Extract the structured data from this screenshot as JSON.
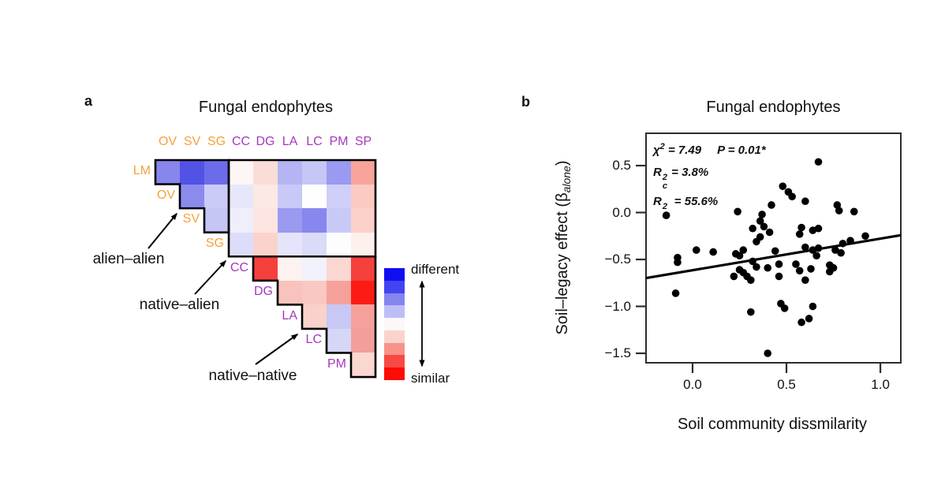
{
  "figure": {
    "background": "#ffffff",
    "text_color": "#111111"
  },
  "panels": {
    "a": {
      "label": "a"
    },
    "b": {
      "label": "b"
    }
  },
  "chart_data": [
    {
      "type": "heatmap",
      "panel": "a",
      "title": "Fungal endophytes",
      "columns": [
        "OV",
        "SV",
        "SG",
        "CC",
        "DG",
        "LA",
        "LC",
        "PM",
        "SP"
      ],
      "column_groups": [
        "alien",
        "alien",
        "alien",
        "native",
        "native",
        "native",
        "native",
        "native",
        "native"
      ],
      "rows": [
        "LM",
        "OV",
        "SV",
        "SG",
        "CC",
        "DG",
        "LA",
        "LC",
        "PM"
      ],
      "row_groups": [
        "alien",
        "alien",
        "alien",
        "alien",
        "native",
        "native",
        "native",
        "native",
        "native"
      ],
      "group_colors": {
        "alien": "#F7A13C",
        "native": "#A636BE"
      },
      "cells": [
        {
          "row": "LM",
          "start_col": 0,
          "colors": [
            "#8686ED",
            "#5252E7",
            "#6C6CEA",
            "#FDF6F4",
            "#FBDDD8",
            "#B5B5F3",
            "#C6C6F7",
            "#9A9AF1",
            "#F9A49B"
          ]
        },
        {
          "row": "OV",
          "start_col": 1,
          "colors": [
            "#8B8BEE",
            "#CBCBF8",
            "#E7E7FB",
            "#FCE9E5",
            "#C9C9F7",
            "#FEFEFF",
            "#CFCFF9",
            "#FBCAC3"
          ]
        },
        {
          "row": "SV",
          "start_col": 2,
          "colors": [
            "#C5C5F6",
            "#EFEFFC",
            "#FCE5E0",
            "#9A9AF1",
            "#8787ED",
            "#C9C9F7",
            "#FBD0C9"
          ]
        },
        {
          "row": "SG",
          "start_col": 3,
          "colors": [
            "#DDDDFA",
            "#FBD3CC",
            "#E4E4FB",
            "#DADAF9",
            "#FEFDFE",
            "#FDF1ED"
          ]
        },
        {
          "row": "CC",
          "start_col": 4,
          "colors": [
            "#F6403B",
            "#FDF2EF",
            "#F2F2FC",
            "#FBD7D2",
            "#F6403B"
          ]
        },
        {
          "row": "DG",
          "start_col": 5,
          "colors": [
            "#F9C3BD",
            "#F9C8C2",
            "#F5A19B",
            "#FC1C16"
          ]
        },
        {
          "row": "LA",
          "start_col": 6,
          "colors": [
            "#FAD1CB",
            "#C8C8F4",
            "#F5A19B"
          ]
        },
        {
          "row": "LC",
          "start_col": 7,
          "colors": [
            "#D6D6F7",
            "#F29F9A"
          ]
        },
        {
          "row": "PM",
          "start_col": 8,
          "colors": [
            "#FBD7D2"
          ]
        }
      ],
      "annotations": [
        {
          "text": "alien–alien"
        },
        {
          "text": "native–alien"
        },
        {
          "text": "native–native"
        }
      ],
      "legend": {
        "top": "different",
        "bottom": "similar",
        "colors": [
          "#0F0FF2",
          "#4343F2",
          "#8585EE",
          "#BEBEF6",
          "#FDF7F7",
          "#FBD3CD",
          "#F9928A",
          "#F74A44",
          "#FB0C07"
        ]
      }
    },
    {
      "type": "scatter",
      "panel": "b",
      "title": "Fungal endophytes",
      "stats": {
        "chi_base": "χ",
        "chi_sup": "2",
        "chi_value": "= 7.49",
        "p_value": "P = 0.01*",
        "r1_base": "R",
        "r1_sup": "2",
        "r1_sub": "c",
        "r1_value": "= 3.8%",
        "r2_base": "R",
        "r2_sup": "2",
        "r2_sub": "m",
        "r2_value": "= 55.6%"
      },
      "xlabel": "Soil community dissmilarity",
      "ylabel_parts": [
        "Soil–legacy effect (β",
        "alone",
        ")"
      ],
      "x_ticks": [
        {
          "value": 0.0,
          "label": "0.0"
        },
        {
          "value": 0.5,
          "label": "0.5"
        },
        {
          "value": 1.0,
          "label": "1.0"
        }
      ],
      "y_ticks": [
        {
          "value": 0.5,
          "label": "0.5"
        },
        {
          "value": 0.0,
          "label": "0.0"
        },
        {
          "value": -0.5,
          "label": "−0.5"
        },
        {
          "value": -1.0,
          "label": "−1.0"
        },
        {
          "value": -1.5,
          "label": "−1.5"
        }
      ],
      "xlim": [
        -0.25,
        1.11
      ],
      "ylim": [
        -1.61,
        0.85
      ],
      "grid": false,
      "point_color": "#000000",
      "line_color": "#000000",
      "regression_line": {
        "x1": -0.25,
        "y1": -0.699,
        "x2": 1.11,
        "y2": -0.241
      },
      "points": [
        [
          -0.14,
          -0.03
        ],
        [
          -0.08,
          -0.48
        ],
        [
          -0.08,
          -0.53
        ],
        [
          -0.09,
          -0.86
        ],
        [
          0.02,
          -0.4
        ],
        [
          0.11,
          -0.42
        ],
        [
          0.22,
          -0.68
        ],
        [
          0.23,
          -0.44
        ],
        [
          0.24,
          0.01
        ],
        [
          0.25,
          -0.46
        ],
        [
          0.25,
          -0.61
        ],
        [
          0.27,
          -0.4
        ],
        [
          0.27,
          -0.64
        ],
        [
          0.29,
          -0.68
        ],
        [
          0.31,
          -0.72
        ],
        [
          0.31,
          -1.06
        ],
        [
          0.32,
          -0.17
        ],
        [
          0.32,
          -0.52
        ],
        [
          0.34,
          -0.31
        ],
        [
          0.34,
          -0.58
        ],
        [
          0.36,
          -0.09
        ],
        [
          0.36,
          -0.26
        ],
        [
          0.37,
          -0.02
        ],
        [
          0.38,
          -0.15
        ],
        [
          0.4,
          -0.59
        ],
        [
          0.4,
          -1.5
        ],
        [
          0.41,
          -0.21
        ],
        [
          0.42,
          0.08
        ],
        [
          0.44,
          -0.41
        ],
        [
          0.46,
          -0.55
        ],
        [
          0.46,
          -0.68
        ],
        [
          0.47,
          -0.97
        ],
        [
          0.48,
          0.28
        ],
        [
          0.49,
          -1.02
        ],
        [
          0.51,
          0.22
        ],
        [
          0.53,
          0.17
        ],
        [
          0.55,
          -0.55
        ],
        [
          0.57,
          -0.23
        ],
        [
          0.57,
          -0.62
        ],
        [
          0.58,
          -0.16
        ],
        [
          0.58,
          -1.17
        ],
        [
          0.6,
          0.12
        ],
        [
          0.6,
          -0.37
        ],
        [
          0.6,
          -0.72
        ],
        [
          0.62,
          -1.13
        ],
        [
          0.63,
          -0.6
        ],
        [
          0.64,
          -0.19
        ],
        [
          0.64,
          -0.4
        ],
        [
          0.64,
          -1.0
        ],
        [
          0.66,
          -0.46
        ],
        [
          0.67,
          0.54
        ],
        [
          0.67,
          -0.17
        ],
        [
          0.67,
          -0.38
        ],
        [
          0.73,
          -0.56
        ],
        [
          0.73,
          -0.63
        ],
        [
          0.75,
          -0.59
        ],
        [
          0.76,
          -0.4
        ],
        [
          0.77,
          0.08
        ],
        [
          0.78,
          0.02
        ],
        [
          0.79,
          -0.43
        ],
        [
          0.8,
          -0.33
        ],
        [
          0.84,
          -0.3
        ],
        [
          0.86,
          0.01
        ],
        [
          0.92,
          -0.25
        ]
      ]
    }
  ]
}
